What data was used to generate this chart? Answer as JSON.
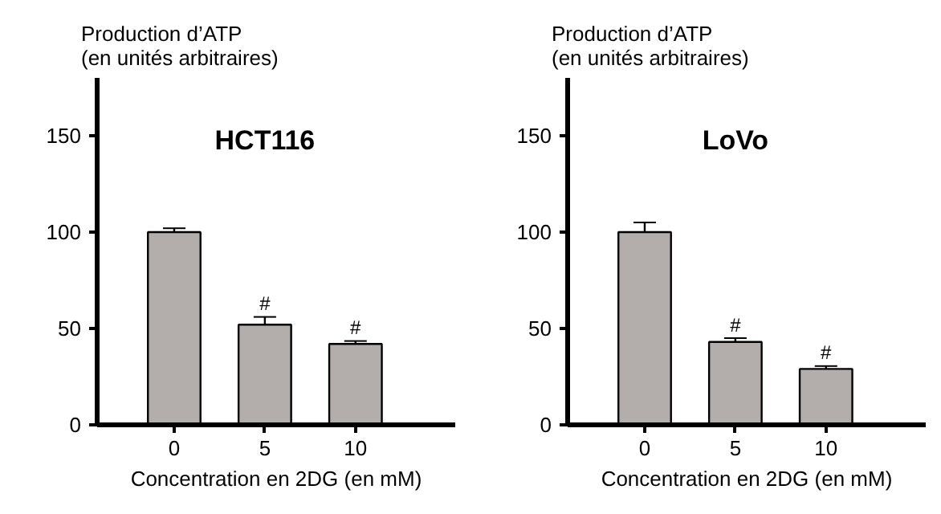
{
  "chart_data": [
    {
      "type": "bar",
      "title": "HCT116",
      "ylabel": "Production d’ATP\n(en unités arbitraires)",
      "xlabel": "Concentration en 2DG (en mM)",
      "categories": [
        "0",
        "5",
        "10"
      ],
      "values": [
        100,
        52,
        42
      ],
      "errors": [
        2,
        4,
        1.5
      ],
      "color": "#b3aeac",
      "ylim": [
        0,
        180
      ],
      "yticks": [
        0,
        50,
        100,
        150
      ],
      "grid": false,
      "annotations": [
        {
          "text": "#",
          "x": "5",
          "y": 57
        },
        {
          "text": "#",
          "x": "10",
          "y": 44.5
        }
      ]
    },
    {
      "type": "bar",
      "title": "LoVo",
      "ylabel": "Production d’ATP\n(en unités arbitraires)",
      "xlabel": "Concentration en 2DG (en mM)",
      "categories": [
        "0",
        "5",
        "10"
      ],
      "values": [
        100,
        43,
        29
      ],
      "errors": [
        5,
        2,
        1.5
      ],
      "color": "#b3aeac",
      "ylim": [
        0,
        180
      ],
      "yticks": [
        0,
        50,
        100,
        150
      ],
      "grid": false,
      "annotations": [
        {
          "text": "#",
          "x": "5",
          "y": 46
        },
        {
          "text": "#",
          "x": "10",
          "y": 31.5
        }
      ]
    }
  ]
}
